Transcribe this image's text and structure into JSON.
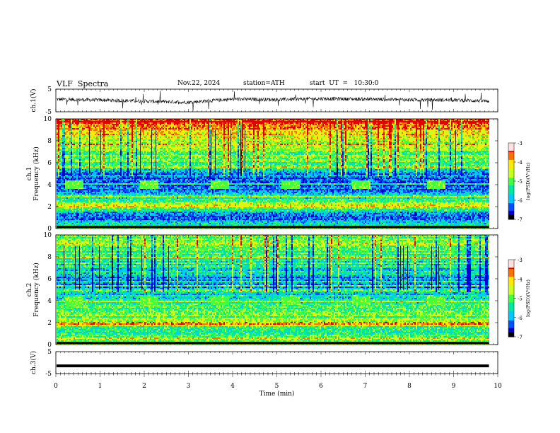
{
  "header": {
    "title": "VLF  Spectra",
    "date": "Nov.22, 2024",
    "station": "station=ATH",
    "start": "start  UT  =   10:30:0"
  },
  "colors": {
    "spectrogram_scale": [
      "#000000",
      "#0000d0",
      "#0050ff",
      "#00c8ff",
      "#00e8a0",
      "#40ff40",
      "#c8ff20",
      "#ffe800",
      "#ff7000",
      "#e00000",
      "#ffffff"
    ]
  },
  "chart_data": [
    {
      "type": "line",
      "name": "ch1-waveform",
      "ylabel": "ch.1(V)",
      "ylim": [
        -5,
        5
      ],
      "yticks": [
        "5",
        "-5"
      ],
      "baseline": 0,
      "xlim": [
        0,
        10
      ],
      "data_end_min": 9.8,
      "x": [
        0,
        1,
        2,
        3,
        4,
        5,
        6,
        7,
        8,
        9,
        9.8
      ],
      "y": [
        0.5,
        0.2,
        -0.3,
        -0.8,
        0.6,
        0.4,
        0.8,
        0.6,
        0.3,
        0.2,
        -0.3
      ]
    },
    {
      "type": "heatmap",
      "name": "ch1-spectrogram",
      "channel": "ch.1",
      "ylabel": "Frequency  (kHz)",
      "ylim": [
        0,
        10
      ],
      "yticks": [
        "0",
        "2",
        "4",
        "6",
        "8",
        "10"
      ],
      "xlim": [
        0,
        10
      ],
      "data_end_min": 9.8,
      "colorbar": {
        "label": "log(PSD)(V²/Hz)",
        "range": [
          -7,
          -3
        ],
        "ticks": [
          "-3",
          "-4",
          "-5",
          "-6",
          "-7"
        ]
      },
      "band_profile": {
        "freq_khz": [
          0,
          0.5,
          1,
          1.5,
          2,
          2.5,
          3,
          3.5,
          4,
          4.5,
          5,
          5.5,
          6,
          6.5,
          7,
          7.5,
          8,
          8.5,
          9,
          9.5,
          10
        ],
        "logpsd": [
          -4.5,
          -5.8,
          -6.2,
          -5.8,
          -4.3,
          -5.2,
          -5.4,
          -6.2,
          -6.4,
          -6.3,
          -6.2,
          -5.4,
          -5.1,
          -5.0,
          -4.9,
          -4.8,
          -4.5,
          -4.3,
          -3.9,
          -3.7,
          -3.5
        ]
      },
      "tone_bursts": [
        {
          "start_min": 0.2,
          "end_min": 0.6,
          "freq_khz": 4.0
        },
        {
          "start_min": 1.9,
          "end_min": 2.3,
          "freq_khz": 4.0
        },
        {
          "start_min": 3.5,
          "end_min": 3.9,
          "freq_khz": 4.0
        },
        {
          "start_min": 5.1,
          "end_min": 5.5,
          "freq_khz": 4.0
        },
        {
          "start_min": 6.7,
          "end_min": 7.1,
          "freq_khz": 4.0
        },
        {
          "start_min": 8.4,
          "end_min": 8.8,
          "freq_khz": 4.0
        }
      ]
    },
    {
      "type": "heatmap",
      "name": "ch2-spectrogram",
      "channel": "ch.2",
      "ylabel": "Frequency  (kHz)",
      "ylim": [
        0,
        10
      ],
      "yticks": [
        "0",
        "2",
        "4",
        "6",
        "8",
        "10"
      ],
      "xlim": [
        0,
        10
      ],
      "data_end_min": 9.8,
      "colorbar": {
        "label": "log(PSD)(V²/Hz)",
        "range": [
          -7,
          -3
        ],
        "ticks": [
          "-3",
          "-4",
          "-5",
          "-6",
          "-7"
        ]
      },
      "band_profile": {
        "freq_khz": [
          0,
          0.5,
          1,
          1.5,
          2,
          2.5,
          3,
          3.5,
          4,
          4.5,
          5,
          5.5,
          6,
          6.5,
          7,
          7.5,
          8,
          8.5,
          9,
          9.5,
          10
        ],
        "logpsd": [
          -4.8,
          -5.2,
          -5.4,
          -5.2,
          -4.2,
          -5.0,
          -5.1,
          -5.0,
          -5.3,
          -5.5,
          -5.6,
          -6.3,
          -6.0,
          -5.7,
          -5.5,
          -5.4,
          -5.3,
          -5.2,
          -5.1,
          -5.0,
          -5.0
        ]
      },
      "tone_bursts": [
        {
          "start_min": 0.2,
          "end_min": 0.6,
          "freq_khz": 4.0
        },
        {
          "start_min": 1.9,
          "end_min": 2.3,
          "freq_khz": 4.0
        },
        {
          "start_min": 3.5,
          "end_min": 3.9,
          "freq_khz": 4.0
        },
        {
          "start_min": 5.1,
          "end_min": 5.5,
          "freq_khz": 4.0
        },
        {
          "start_min": 6.7,
          "end_min": 7.1,
          "freq_khz": 4.0
        },
        {
          "start_min": 8.4,
          "end_min": 8.8,
          "freq_khz": 4.0
        }
      ]
    },
    {
      "type": "line",
      "name": "ch3-waveform",
      "ylabel": "ch.3(V)",
      "ylim": [
        -5,
        5
      ],
      "yticks": [
        "5",
        "-5"
      ],
      "xlim": [
        0,
        10
      ],
      "data_end_min": 9.8,
      "x": [
        0,
        9.8
      ],
      "y": [
        -1.5,
        -1.5
      ],
      "xlabel": "Time  (min)",
      "xticks": [
        "0",
        "1",
        "2",
        "3",
        "4",
        "5",
        "6",
        "7",
        "8",
        "9",
        "10"
      ]
    }
  ]
}
